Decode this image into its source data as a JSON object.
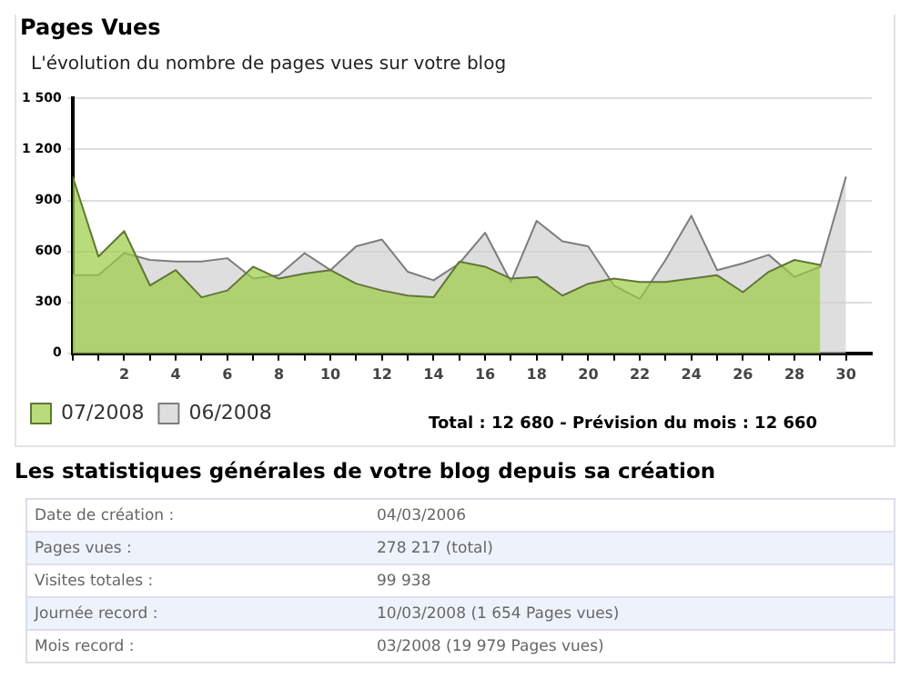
{
  "chart_data": {
    "type": "area",
    "title": "Pages Vues",
    "subtitle": "L'évolution du nombre de pages vues sur votre blog",
    "series": [
      {
        "name": "07/2008",
        "color": "#9ccc45",
        "x": [
          0,
          1,
          2,
          3,
          4,
          5,
          6,
          7,
          8,
          9,
          10,
          11,
          12,
          13,
          14,
          15,
          16,
          17,
          18,
          19,
          20,
          21,
          22,
          23,
          24,
          25,
          26,
          27,
          28,
          29
        ],
        "values": [
          1040,
          570,
          720,
          400,
          490,
          330,
          370,
          510,
          440,
          470,
          490,
          410,
          370,
          340,
          330,
          540,
          510,
          440,
          450,
          340,
          410,
          440,
          420,
          420,
          440,
          460,
          360,
          480,
          550,
          520
        ]
      },
      {
        "name": "06/2008",
        "color": "#d0d0d0",
        "x": [
          0,
          1,
          2,
          3,
          4,
          5,
          6,
          7,
          8,
          9,
          10,
          11,
          12,
          13,
          14,
          15,
          16,
          17,
          18,
          19,
          20,
          21,
          22,
          23,
          24,
          25,
          26,
          27,
          28,
          29,
          30
        ],
        "values": [
          460,
          460,
          590,
          550,
          540,
          540,
          560,
          440,
          460,
          590,
          490,
          630,
          670,
          480,
          430,
          530,
          710,
          420,
          780,
          660,
          630,
          400,
          320,
          550,
          810,
          490,
          530,
          580,
          450,
          510,
          1040
        ]
      }
    ],
    "xlim": [
      0,
      31
    ],
    "xticks": [
      {
        "value": 0,
        "label": null
      },
      {
        "value": 1,
        "label": null
      },
      2,
      {
        "value": 3,
        "label": null
      },
      4,
      {
        "value": 5,
        "label": null
      },
      6,
      {
        "value": 7,
        "label": null
      },
      8,
      {
        "value": 9,
        "label": null
      },
      10,
      {
        "value": 11,
        "label": null
      },
      12,
      {
        "value": 13,
        "label": null
      },
      14,
      {
        "value": 15,
        "label": null
      },
      16,
      {
        "value": 17,
        "label": null
      },
      18,
      {
        "value": 19,
        "label": null
      },
      20,
      {
        "value": 21,
        "label": null
      },
      22,
      {
        "value": 23,
        "label": null
      },
      24,
      {
        "value": 25,
        "label": null
      },
      26,
      {
        "value": 27,
        "label": null
      },
      28,
      {
        "value": 29,
        "label": null
      },
      30
    ],
    "ylim": [
      0,
      1500
    ],
    "yticks": [
      0,
      300,
      600,
      900,
      {
        "value": 1200,
        "label": "1 200"
      },
      {
        "value": 1500,
        "label": "1 500"
      }
    ],
    "grid": "y",
    "legend": "bottom left",
    "marker": "none",
    "annotations": [
      "Total : 12 680 - Prévision du mois : 12 660",
      "Les statistiques générales de votre blog depuis sa création",
      "Date de création :",
      "04/03/2006",
      "Pages vues :",
      "278 217 (total)",
      "Visites totales :",
      "99 938",
      "Journée record :",
      "10/03/2008 (1 654 Pages vues)",
      "Mois record :",
      "03/2008 (19 979 Pages vues)"
    ]
  }
}
